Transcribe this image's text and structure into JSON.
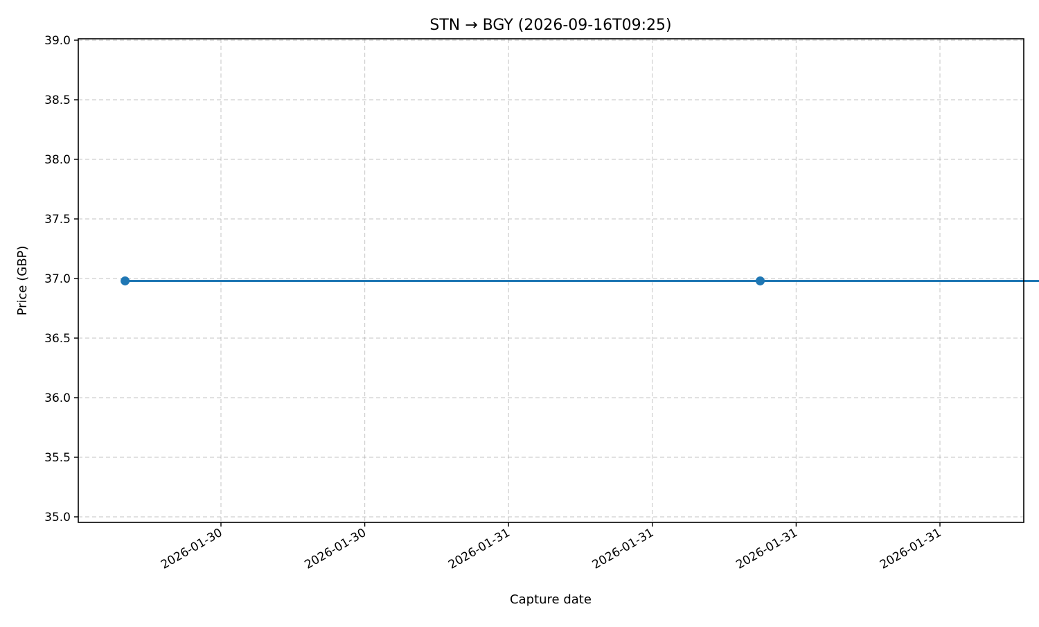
{
  "chart_data": {
    "type": "line",
    "title": "STN → BGY (2026-09-16T09:25)",
    "xlabel": "Capture date",
    "ylabel": "Price (GBP)",
    "ylim": [
      35.0,
      39.0
    ],
    "y_ticks": [
      35.0,
      35.5,
      36.0,
      36.5,
      37.0,
      37.5,
      38.0,
      38.5,
      39.0
    ],
    "x_tick_labels": [
      "2026-01-30",
      "2026-01-30",
      "2026-01-31",
      "2026-01-31",
      "2026-01-31",
      "2026-01-31"
    ],
    "grid": true,
    "series": [
      {
        "color": "#1f77b4",
        "x": [
          "2026-01-29T23:00",
          "2026-01-31T01:30",
          "2026-01-31T20:30"
        ],
        "y": [
          36.98,
          36.98,
          36.98
        ]
      }
    ]
  }
}
